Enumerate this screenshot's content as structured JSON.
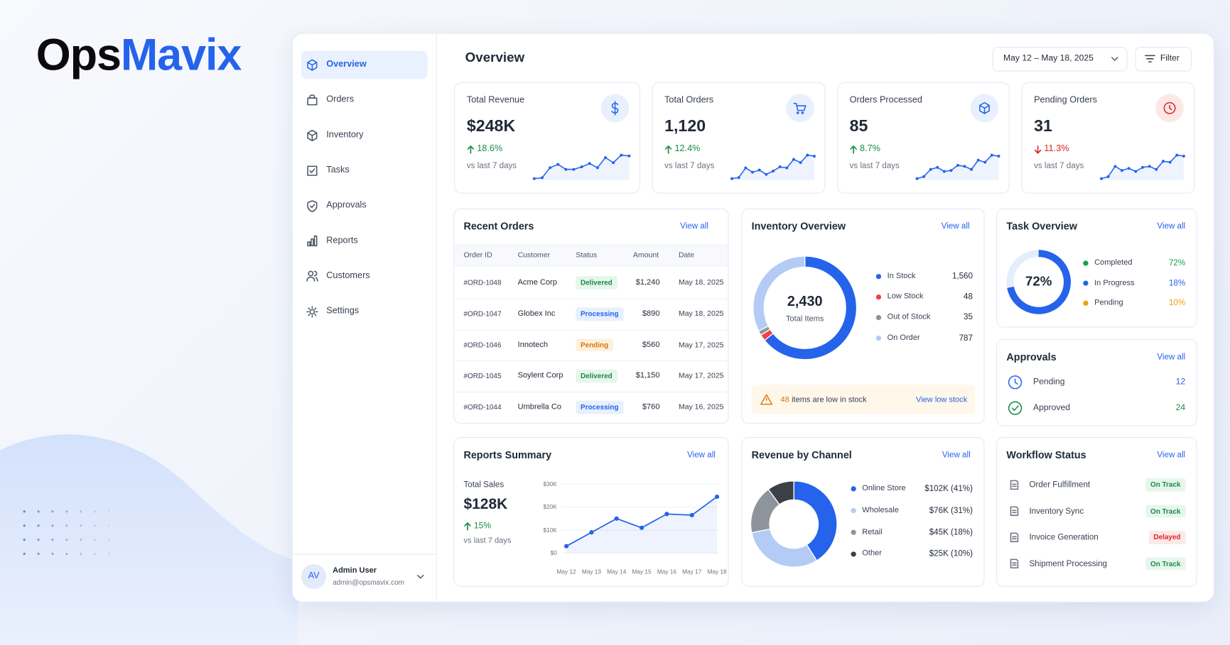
{
  "brand": {
    "name_start": "Ops",
    "name_end": "Mavix"
  },
  "sidebar": {
    "nav": [
      {
        "label": "Overview",
        "icon": "box",
        "active": true
      },
      {
        "label": "Orders",
        "icon": "bag"
      },
      {
        "label": "Inventory",
        "icon": "cube"
      },
      {
        "label": "Tasks",
        "icon": "check"
      },
      {
        "label": "Approvals",
        "icon": "shield"
      },
      {
        "label": "Reports",
        "icon": "bars"
      },
      {
        "label": "Customers",
        "icon": "users"
      },
      {
        "label": "Settings",
        "icon": "gear"
      }
    ],
    "user": {
      "initials": "AV",
      "name": "Admin User",
      "email": "admin@opsmavix.com"
    }
  },
  "header": {
    "title": "Overview",
    "date_range": "May 12 – May 18, 2025",
    "filter": "Filter"
  },
  "kpis": [
    {
      "label": "Total Revenue",
      "value": "$248K",
      "change": "18.6%",
      "direction": "up",
      "note": "vs last 7 days",
      "icon": "dollar",
      "tone": "blue",
      "trend": [
        20,
        21,
        33,
        37,
        31,
        31,
        34,
        38,
        33,
        45,
        39,
        48,
        47
      ]
    },
    {
      "label": "Total Orders",
      "value": "1,120",
      "change": "12.4%",
      "direction": "up",
      "note": "vs last 7 days",
      "icon": "cart",
      "tone": "blue",
      "trend": [
        22,
        23,
        32,
        28,
        30,
        26,
        29,
        33,
        32,
        40,
        37,
        44,
        43
      ]
    },
    {
      "label": "Orders Processed",
      "value": "85",
      "change": "8.7%",
      "direction": "up",
      "note": "vs last 7 days",
      "icon": "cube",
      "tone": "blue",
      "trend": [
        22,
        24,
        31,
        33,
        29,
        30,
        35,
        34,
        31,
        40,
        38,
        45,
        44
      ]
    },
    {
      "label": "Pending Orders",
      "value": "31",
      "change": "11.3%",
      "direction": "down",
      "note": "vs last 7 days",
      "icon": "clock",
      "tone": "red",
      "trend": [
        22,
        24,
        34,
        30,
        32,
        29,
        33,
        34,
        31,
        39,
        38,
        45,
        44
      ]
    }
  ],
  "recent_orders": {
    "title": "Recent Orders",
    "view_all": "View all",
    "columns": [
      "Order ID",
      "Customer",
      "Status",
      "Amount",
      "Date"
    ],
    "rows": [
      {
        "id": "#ORD-1048",
        "customer": "Acme Corp",
        "status": "Delivered",
        "tone": "green",
        "amount": "$1,240",
        "date": "May 18, 2025"
      },
      {
        "id": "#ORD-1047",
        "customer": "Globex Inc",
        "status": "Processing",
        "tone": "blue",
        "amount": "$890",
        "date": "May 18, 2025"
      },
      {
        "id": "#ORD-1046",
        "customer": "Innotech",
        "status": "Pending",
        "tone": "orange",
        "amount": "$560",
        "date": "May 17, 2025"
      },
      {
        "id": "#ORD-1045",
        "customer": "Soylent Corp",
        "status": "Delivered",
        "tone": "green",
        "amount": "$1,150",
        "date": "May 17, 2025"
      },
      {
        "id": "#ORD-1044",
        "customer": "Umbrella Co",
        "status": "Processing",
        "tone": "blue",
        "amount": "$760",
        "date": "May 16, 2025"
      }
    ]
  },
  "inventory": {
    "title": "Inventory Overview",
    "view_all": "View all",
    "chart": {
      "type": "donut",
      "categories": [
        "In Stock",
        "Low Stock",
        "Out of Stock",
        "On Order"
      ],
      "values": [
        1560,
        48,
        35,
        787
      ],
      "value_labels": [
        "1,560",
        "48",
        "35",
        "787"
      ],
      "colors": [
        "#2563eb",
        "#ef4444",
        "#8e949c",
        "#b3cbf5"
      ],
      "center_value": "2,430",
      "center_label": "Total Items"
    },
    "alert": {
      "count": "48",
      "text": "items are low in stock",
      "link": "View low stock"
    }
  },
  "task_overview": {
    "title": "Task Overview",
    "view_all": "View all",
    "chart": {
      "type": "progress-ring",
      "categories": [
        "Completed",
        "In Progress",
        "Pending"
      ],
      "values": [
        72,
        18,
        10
      ],
      "value_labels": [
        "72%",
        "18%",
        "10%"
      ],
      "colors": [
        "#16a34a",
        "#2563eb",
        "#f59e0b"
      ],
      "ring_color": "#2563eb"
    }
  },
  "approvals": {
    "title": "Approvals",
    "view_all": "View all",
    "items": [
      {
        "label": "Pending",
        "count": "12",
        "icon": "clock",
        "tone": "blue"
      },
      {
        "label": "Approved",
        "count": "24",
        "icon": "check",
        "tone": "green"
      }
    ]
  },
  "reports_summary": {
    "title": "Reports Summary",
    "view_all": "View all",
    "metric_label": "Total Sales",
    "metric_value": "$128K",
    "change": "15%",
    "direction": "up",
    "note": "vs last 7 days",
    "chart": {
      "type": "line",
      "x": [
        "May 12",
        "May 13",
        "May 14",
        "May 15",
        "May 16",
        "May 17",
        "May 18"
      ],
      "values": [
        3000,
        9000,
        15000,
        11000,
        17000,
        16500,
        24500
      ],
      "color": "#2563eb",
      "ylim": [
        0,
        30000
      ],
      "yticks": [
        {
          "value": 0,
          "label": "$0"
        },
        {
          "value": 10000,
          "label": "$10K"
        },
        {
          "value": 20000,
          "label": "$20K"
        },
        {
          "value": 30000,
          "label": "$30K"
        }
      ],
      "grid": true
    }
  },
  "revenue_by_channel": {
    "title": "Revenue by Channel",
    "view_all": "View all",
    "chart": {
      "type": "donut",
      "categories": [
        "Online Store",
        "Wholesale",
        "Retail",
        "Other"
      ],
      "values": [
        102000,
        76000,
        45000,
        25000
      ],
      "value_labels": [
        "$102K (41%)",
        "$76K (31%)",
        "$45K (18%)",
        "$25K (10%)"
      ],
      "colors": [
        "#2563eb",
        "#b3cbf5",
        "#8e949c",
        "#3b3f46"
      ]
    }
  },
  "workflow_status": {
    "title": "Workflow Status",
    "view_all": "View all",
    "items": [
      {
        "label": "Order Fulfillment",
        "status": "On Track",
        "tone": "green"
      },
      {
        "label": "Inventory Sync",
        "status": "On Track",
        "tone": "green"
      },
      {
        "label": "Invoice Generation",
        "status": "Delayed",
        "tone": "red"
      },
      {
        "label": "Shipment Processing",
        "status": "On Track",
        "tone": "green"
      }
    ]
  }
}
